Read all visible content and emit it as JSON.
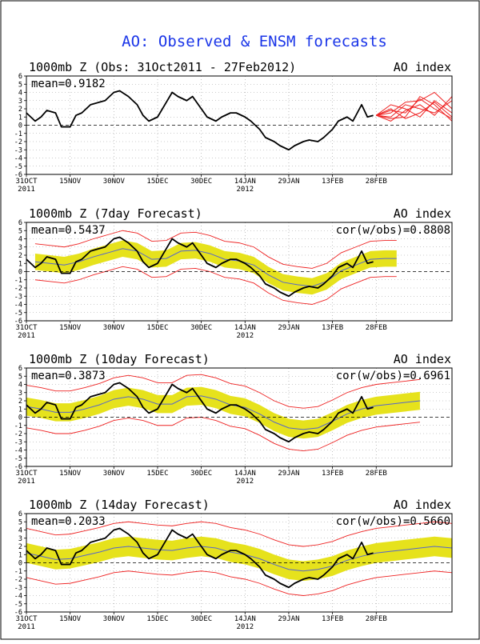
{
  "title": "AO: Observed & ENSM forecasts",
  "colors": {
    "title": "#1a35e8",
    "observed": "#000000",
    "member": "#ee2222",
    "spread": "#e6e21c",
    "ens_mean": "#5566cc",
    "zero_line": "#000000",
    "grid": "#999999"
  },
  "chart_data": [
    {
      "type": "line",
      "title": "1000mb Z (Obs: 31Oct2011 - 27Feb2012)",
      "index_label": "AO index",
      "mean_label": "mean=0.9182",
      "cor_label": "",
      "xtick_labels": [
        "31OCT",
        "15NOV",
        "30NOV",
        "15DEC",
        "30DEC",
        "14JAN",
        "29JAN",
        "13FEB",
        "28FEB"
      ],
      "xtick_days": [
        0,
        15,
        30,
        45,
        60,
        75,
        90,
        105,
        120
      ],
      "xtick_sublabels": [
        {
          "day": 0,
          "text": "2011"
        },
        {
          "day": 75,
          "text": "2012"
        }
      ],
      "ylim": [
        -6,
        6
      ],
      "yticks": [
        -6,
        -5,
        -4,
        -3,
        -2,
        -1,
        0,
        1,
        2,
        3,
        4,
        5,
        6
      ],
      "xlim": [
        0,
        146
      ],
      "grid": true,
      "observed": {
        "x": [
          0,
          3,
          5,
          7,
          10,
          12,
          15,
          17,
          19,
          22,
          25,
          27,
          30,
          32,
          35,
          38,
          40,
          42,
          45,
          47,
          50,
          52,
          55,
          57,
          60,
          62,
          65,
          67,
          70,
          72,
          75,
          77,
          80,
          82,
          85,
          87,
          90,
          92,
          95,
          97,
          100,
          102,
          105,
          107,
          110,
          112,
          115,
          117,
          119
        ],
        "y": [
          1.5,
          0.5,
          1.0,
          1.8,
          1.5,
          -0.2,
          -0.2,
          1.2,
          1.5,
          2.5,
          2.8,
          3.0,
          4.0,
          4.2,
          3.5,
          2.5,
          1.2,
          0.5,
          1.0,
          2.2,
          4.0,
          3.5,
          3.0,
          3.5,
          2.0,
          1.0,
          0.5,
          1.0,
          1.5,
          1.5,
          1.0,
          0.5,
          -0.5,
          -1.5,
          -2.0,
          -2.5,
          -3.0,
          -2.5,
          -2.0,
          -1.8,
          -2.0,
          -1.5,
          -0.5,
          0.5,
          1.0,
          0.5,
          2.5,
          1.0,
          1.2
        ]
      },
      "members": {
        "x": [
          120,
          125,
          130,
          135,
          140,
          146
        ],
        "series": [
          [
            1.2,
            2.0,
            0.8,
            1.5,
            2.8,
            1.0
          ],
          [
            1.2,
            0.5,
            1.8,
            2.5,
            1.2,
            3.5
          ],
          [
            1.2,
            1.5,
            2.8,
            3.0,
            4.0,
            2.0
          ],
          [
            1.2,
            0.8,
            1.0,
            3.5,
            2.5,
            0.5
          ],
          [
            1.2,
            2.5,
            2.0,
            1.0,
            3.0,
            1.5
          ],
          [
            1.2,
            1.0,
            2.5,
            2.0,
            1.5,
            3.0
          ],
          [
            1.2,
            1.8,
            1.5,
            3.2,
            2.0,
            0.8
          ]
        ]
      }
    },
    {
      "type": "line",
      "title": "1000mb Z (7day Forecast)",
      "index_label": "AO index",
      "mean_label": "mean=0.5437",
      "cor_label": "cor(w/obs)=0.8808",
      "xtick_labels": [
        "31OCT",
        "15NOV",
        "30NOV",
        "15DEC",
        "30DEC",
        "14JAN",
        "29JAN",
        "13FEB",
        "28FEB"
      ],
      "xtick_days": [
        0,
        15,
        30,
        45,
        60,
        75,
        90,
        105,
        120
      ],
      "xtick_sublabels": [
        {
          "day": 0,
          "text": "2011"
        },
        {
          "day": 75,
          "text": "2012"
        }
      ],
      "ylim": [
        -6,
        6
      ],
      "yticks": [
        -6,
        -5,
        -4,
        -3,
        -2,
        -1,
        0,
        1,
        2,
        3,
        4,
        5,
        6
      ],
      "xlim": [
        0,
        146
      ],
      "grid": true,
      "observed": {
        "x": [
          0,
          3,
          5,
          7,
          10,
          12,
          15,
          17,
          19,
          22,
          25,
          27,
          30,
          32,
          35,
          38,
          40,
          42,
          45,
          47,
          50,
          52,
          55,
          57,
          60,
          62,
          65,
          67,
          70,
          72,
          75,
          77,
          80,
          82,
          85,
          87,
          90,
          92,
          95,
          97,
          100,
          102,
          105,
          107,
          110,
          112,
          115,
          117,
          119
        ],
        "y": [
          1.5,
          0.5,
          1.0,
          1.8,
          1.5,
          -0.2,
          -0.2,
          1.2,
          1.5,
          2.5,
          2.8,
          3.0,
          4.0,
          4.2,
          3.5,
          2.5,
          1.2,
          0.5,
          1.0,
          2.2,
          4.0,
          3.5,
          3.0,
          3.5,
          2.0,
          1.0,
          0.5,
          1.0,
          1.5,
          1.5,
          1.0,
          0.5,
          -0.5,
          -1.5,
          -2.0,
          -2.5,
          -3.0,
          -2.5,
          -2.0,
          -1.8,
          -2.0,
          -1.5,
          -0.5,
          0.5,
          1.0,
          0.5,
          2.5,
          1.0,
          1.2
        ]
      },
      "forecast": {
        "x": [
          3,
          8,
          13,
          18,
          23,
          28,
          33,
          38,
          43,
          48,
          53,
          58,
          63,
          68,
          73,
          78,
          83,
          88,
          93,
          98,
          103,
          108,
          113,
          118,
          123,
          127
        ],
        "mean": [
          1.2,
          1.0,
          0.8,
          1.2,
          1.8,
          2.3,
          2.8,
          2.5,
          1.5,
          1.6,
          2.5,
          2.6,
          2.2,
          1.5,
          1.3,
          0.8,
          -0.4,
          -1.3,
          -1.6,
          -1.8,
          -1.2,
          0.1,
          0.8,
          1.5,
          1.6,
          1.6
        ],
        "spread": [
          1.0,
          1.0,
          1.0,
          1.0,
          1.0,
          1.0,
          1.0,
          1.0,
          1.0,
          1.0,
          1.0,
          1.0,
          1.0,
          1.0,
          1.0,
          1.0,
          1.0,
          1.0,
          1.0,
          1.0,
          1.0,
          1.0,
          1.0,
          1.0,
          1.0,
          1.0
        ],
        "envelope": 2.2
      }
    },
    {
      "type": "line",
      "title": "1000mb Z (10day Forecast)",
      "index_label": "AO index",
      "mean_label": "mean=0.3873",
      "cor_label": "cor(w/obs)=0.6961",
      "xtick_labels": [
        "31OCT",
        "15NOV",
        "30NOV",
        "15DEC",
        "30DEC",
        "14JAN",
        "29JAN",
        "13FEB",
        "28FEB"
      ],
      "xtick_days": [
        0,
        15,
        30,
        45,
        60,
        75,
        90,
        105,
        120
      ],
      "xtick_sublabels": [
        {
          "day": 0,
          "text": "2011"
        },
        {
          "day": 75,
          "text": "2012"
        }
      ],
      "ylim": [
        -6,
        6
      ],
      "yticks": [
        -6,
        -5,
        -4,
        -3,
        -2,
        -1,
        0,
        1,
        2,
        3,
        4,
        5,
        6
      ],
      "xlim": [
        0,
        146
      ],
      "grid": true,
      "observed": {
        "x": [
          0,
          3,
          5,
          7,
          10,
          12,
          15,
          17,
          19,
          22,
          25,
          27,
          30,
          32,
          35,
          38,
          40,
          42,
          45,
          47,
          50,
          52,
          55,
          57,
          60,
          62,
          65,
          67,
          70,
          72,
          75,
          77,
          80,
          82,
          85,
          87,
          90,
          92,
          95,
          97,
          100,
          102,
          105,
          107,
          110,
          112,
          115,
          117,
          119
        ],
        "y": [
          1.5,
          0.5,
          1.0,
          1.8,
          1.5,
          -0.2,
          -0.2,
          1.2,
          1.5,
          2.5,
          2.8,
          3.0,
          4.0,
          4.2,
          3.5,
          2.5,
          1.2,
          0.5,
          1.0,
          2.2,
          4.0,
          3.5,
          3.0,
          3.5,
          2.0,
          1.0,
          0.5,
          1.0,
          1.5,
          1.5,
          1.0,
          0.5,
          -0.5,
          -1.5,
          -2.0,
          -2.5,
          -3.0,
          -2.5,
          -2.0,
          -1.8,
          -2.0,
          -1.5,
          -0.5,
          0.5,
          1.0,
          0.5,
          2.5,
          1.0,
          1.2
        ]
      },
      "forecast": {
        "x": [
          0,
          5,
          10,
          15,
          20,
          25,
          30,
          35,
          40,
          45,
          50,
          55,
          60,
          65,
          70,
          75,
          80,
          85,
          90,
          95,
          100,
          105,
          110,
          115,
          120,
          125,
          130,
          135
        ],
        "mean": [
          1.3,
          1.0,
          0.6,
          0.6,
          1.0,
          1.5,
          2.2,
          2.5,
          2.2,
          1.6,
          1.6,
          2.5,
          2.6,
          2.2,
          1.5,
          1.2,
          0.4,
          -0.6,
          -1.3,
          -1.5,
          -1.3,
          -0.5,
          0.4,
          1.0,
          1.4,
          1.6,
          1.8,
          2.0
        ],
        "spread": [
          1.1,
          1.1,
          1.1,
          1.1,
          1.1,
          1.1,
          1.1,
          1.1,
          1.1,
          1.1,
          1.1,
          1.1,
          1.1,
          1.1,
          1.1,
          1.1,
          1.1,
          1.1,
          1.1,
          1.1,
          1.1,
          1.1,
          1.1,
          1.1,
          1.1,
          1.1,
          1.1,
          1.1
        ],
        "envelope": 2.6
      }
    },
    {
      "type": "line",
      "title": "1000mb Z (14day Forecast)",
      "index_label": "AO index",
      "mean_label": "mean=0.2033",
      "cor_label": "cor(w/obs)=0.5660",
      "xtick_labels": [
        "31OCT",
        "15NOV",
        "30NOV",
        "15DEC",
        "30DEC",
        "14JAN",
        "29JAN",
        "13FEB",
        "28FEB"
      ],
      "xtick_days": [
        0,
        15,
        30,
        45,
        60,
        75,
        90,
        105,
        120
      ],
      "xtick_sublabels": [
        {
          "day": 0,
          "text": "2011"
        },
        {
          "day": 75,
          "text": "2012"
        }
      ],
      "ylim": [
        -6,
        6
      ],
      "yticks": [
        -6,
        -5,
        -4,
        -3,
        -2,
        -1,
        0,
        1,
        2,
        3,
        4,
        5,
        6
      ],
      "xlim": [
        0,
        146
      ],
      "grid": true,
      "observed": {
        "x": [
          0,
          3,
          5,
          7,
          10,
          12,
          15,
          17,
          19,
          22,
          25,
          27,
          30,
          32,
          35,
          38,
          40,
          42,
          45,
          47,
          50,
          52,
          55,
          57,
          60,
          62,
          65,
          67,
          70,
          72,
          75,
          77,
          80,
          82,
          85,
          87,
          90,
          92,
          95,
          97,
          100,
          102,
          105,
          107,
          110,
          112,
          115,
          117,
          119
        ],
        "y": [
          1.5,
          0.5,
          1.0,
          1.8,
          1.5,
          -0.2,
          -0.2,
          1.2,
          1.5,
          2.5,
          2.8,
          3.0,
          4.0,
          4.2,
          3.5,
          2.5,
          1.2,
          0.5,
          1.0,
          2.2,
          4.0,
          3.5,
          3.0,
          3.5,
          2.0,
          1.0,
          0.5,
          1.0,
          1.5,
          1.5,
          1.0,
          0.5,
          -0.5,
          -1.5,
          -2.0,
          -2.5,
          -3.0,
          -2.5,
          -2.0,
          -1.8,
          -2.0,
          -1.5,
          -0.5,
          0.5,
          1.0,
          0.5,
          2.5,
          1.0,
          1.2
        ]
      },
      "forecast": {
        "x": [
          0,
          5,
          10,
          15,
          20,
          25,
          30,
          35,
          40,
          45,
          50,
          55,
          60,
          65,
          70,
          75,
          80,
          85,
          90,
          95,
          100,
          105,
          110,
          115,
          120,
          125,
          130,
          135,
          140,
          146
        ],
        "mean": [
          1.2,
          0.8,
          0.4,
          0.5,
          0.9,
          1.3,
          1.8,
          2.0,
          1.8,
          1.6,
          1.5,
          1.8,
          2.0,
          1.8,
          1.3,
          1.0,
          0.5,
          -0.2,
          -0.8,
          -1.0,
          -0.8,
          -0.4,
          0.3,
          0.8,
          1.2,
          1.4,
          1.6,
          1.8,
          2.0,
          1.8
        ],
        "spread": [
          1.2,
          1.2,
          1.2,
          1.2,
          1.2,
          1.2,
          1.2,
          1.2,
          1.2,
          1.2,
          1.2,
          1.2,
          1.2,
          1.2,
          1.2,
          1.2,
          1.2,
          1.2,
          1.2,
          1.2,
          1.2,
          1.2,
          1.2,
          1.2,
          1.2,
          1.2,
          1.2,
          1.2,
          1.2,
          1.2
        ],
        "envelope": 3.0
      }
    }
  ]
}
